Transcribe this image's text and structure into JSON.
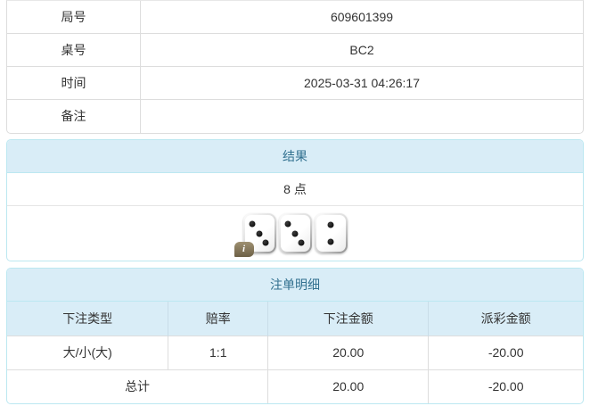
{
  "info_table": {
    "rows": [
      {
        "label": "局号",
        "value": "609601399"
      },
      {
        "label": "桌号",
        "value": "BC2"
      },
      {
        "label": "时间",
        "value": "2025-03-31 04:26:17"
      },
      {
        "label": "备注",
        "value": ""
      }
    ]
  },
  "result_panel": {
    "title": "结果",
    "points": "8 点",
    "dice": [
      3,
      3,
      2
    ],
    "info_icon": "i"
  },
  "bets_panel": {
    "title": "注单明细",
    "columns": [
      "下注类型",
      "赔率",
      "下注金额",
      "派彩金额"
    ],
    "rows": [
      {
        "type": "大/小(大)",
        "odds": "1:1",
        "bet": "20.00",
        "payout": "-20.00"
      }
    ],
    "total": {
      "label": "总计",
      "bet": "20.00",
      "payout": "-20.00"
    }
  },
  "colors": {
    "panel_border": "#bce8f1",
    "panel_heading_bg": "#d9edf7",
    "panel_heading_text": "#31708f",
    "table_border": "#dddddd",
    "negative": "#e4393c"
  }
}
